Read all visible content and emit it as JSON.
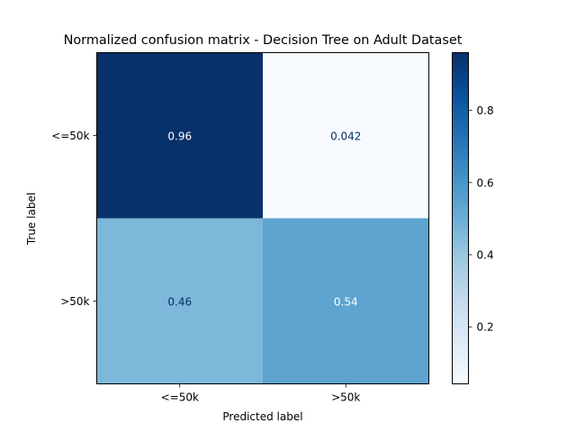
{
  "chart_data": {
    "type": "heatmap",
    "title": "Normalized confusion matrix - Decision Tree on Adult Dataset",
    "xlabel": "Predicted label",
    "ylabel": "True label",
    "x_categories": [
      "<=50k",
      ">50k"
    ],
    "y_categories": [
      "<=50k",
      ">50k"
    ],
    "values": [
      [
        0.96,
        0.042
      ],
      [
        0.46,
        0.54
      ]
    ],
    "cell_labels": [
      [
        "0.96",
        "0.042"
      ],
      [
        "0.46",
        "0.54"
      ]
    ],
    "colormap": "Blues",
    "colorbar": {
      "range": [
        0.042,
        0.96
      ],
      "ticks": [
        0.2,
        0.4,
        0.6,
        0.8
      ],
      "tick_labels": [
        "0.2",
        "0.4",
        "0.6",
        "0.8"
      ]
    },
    "grid": false
  }
}
